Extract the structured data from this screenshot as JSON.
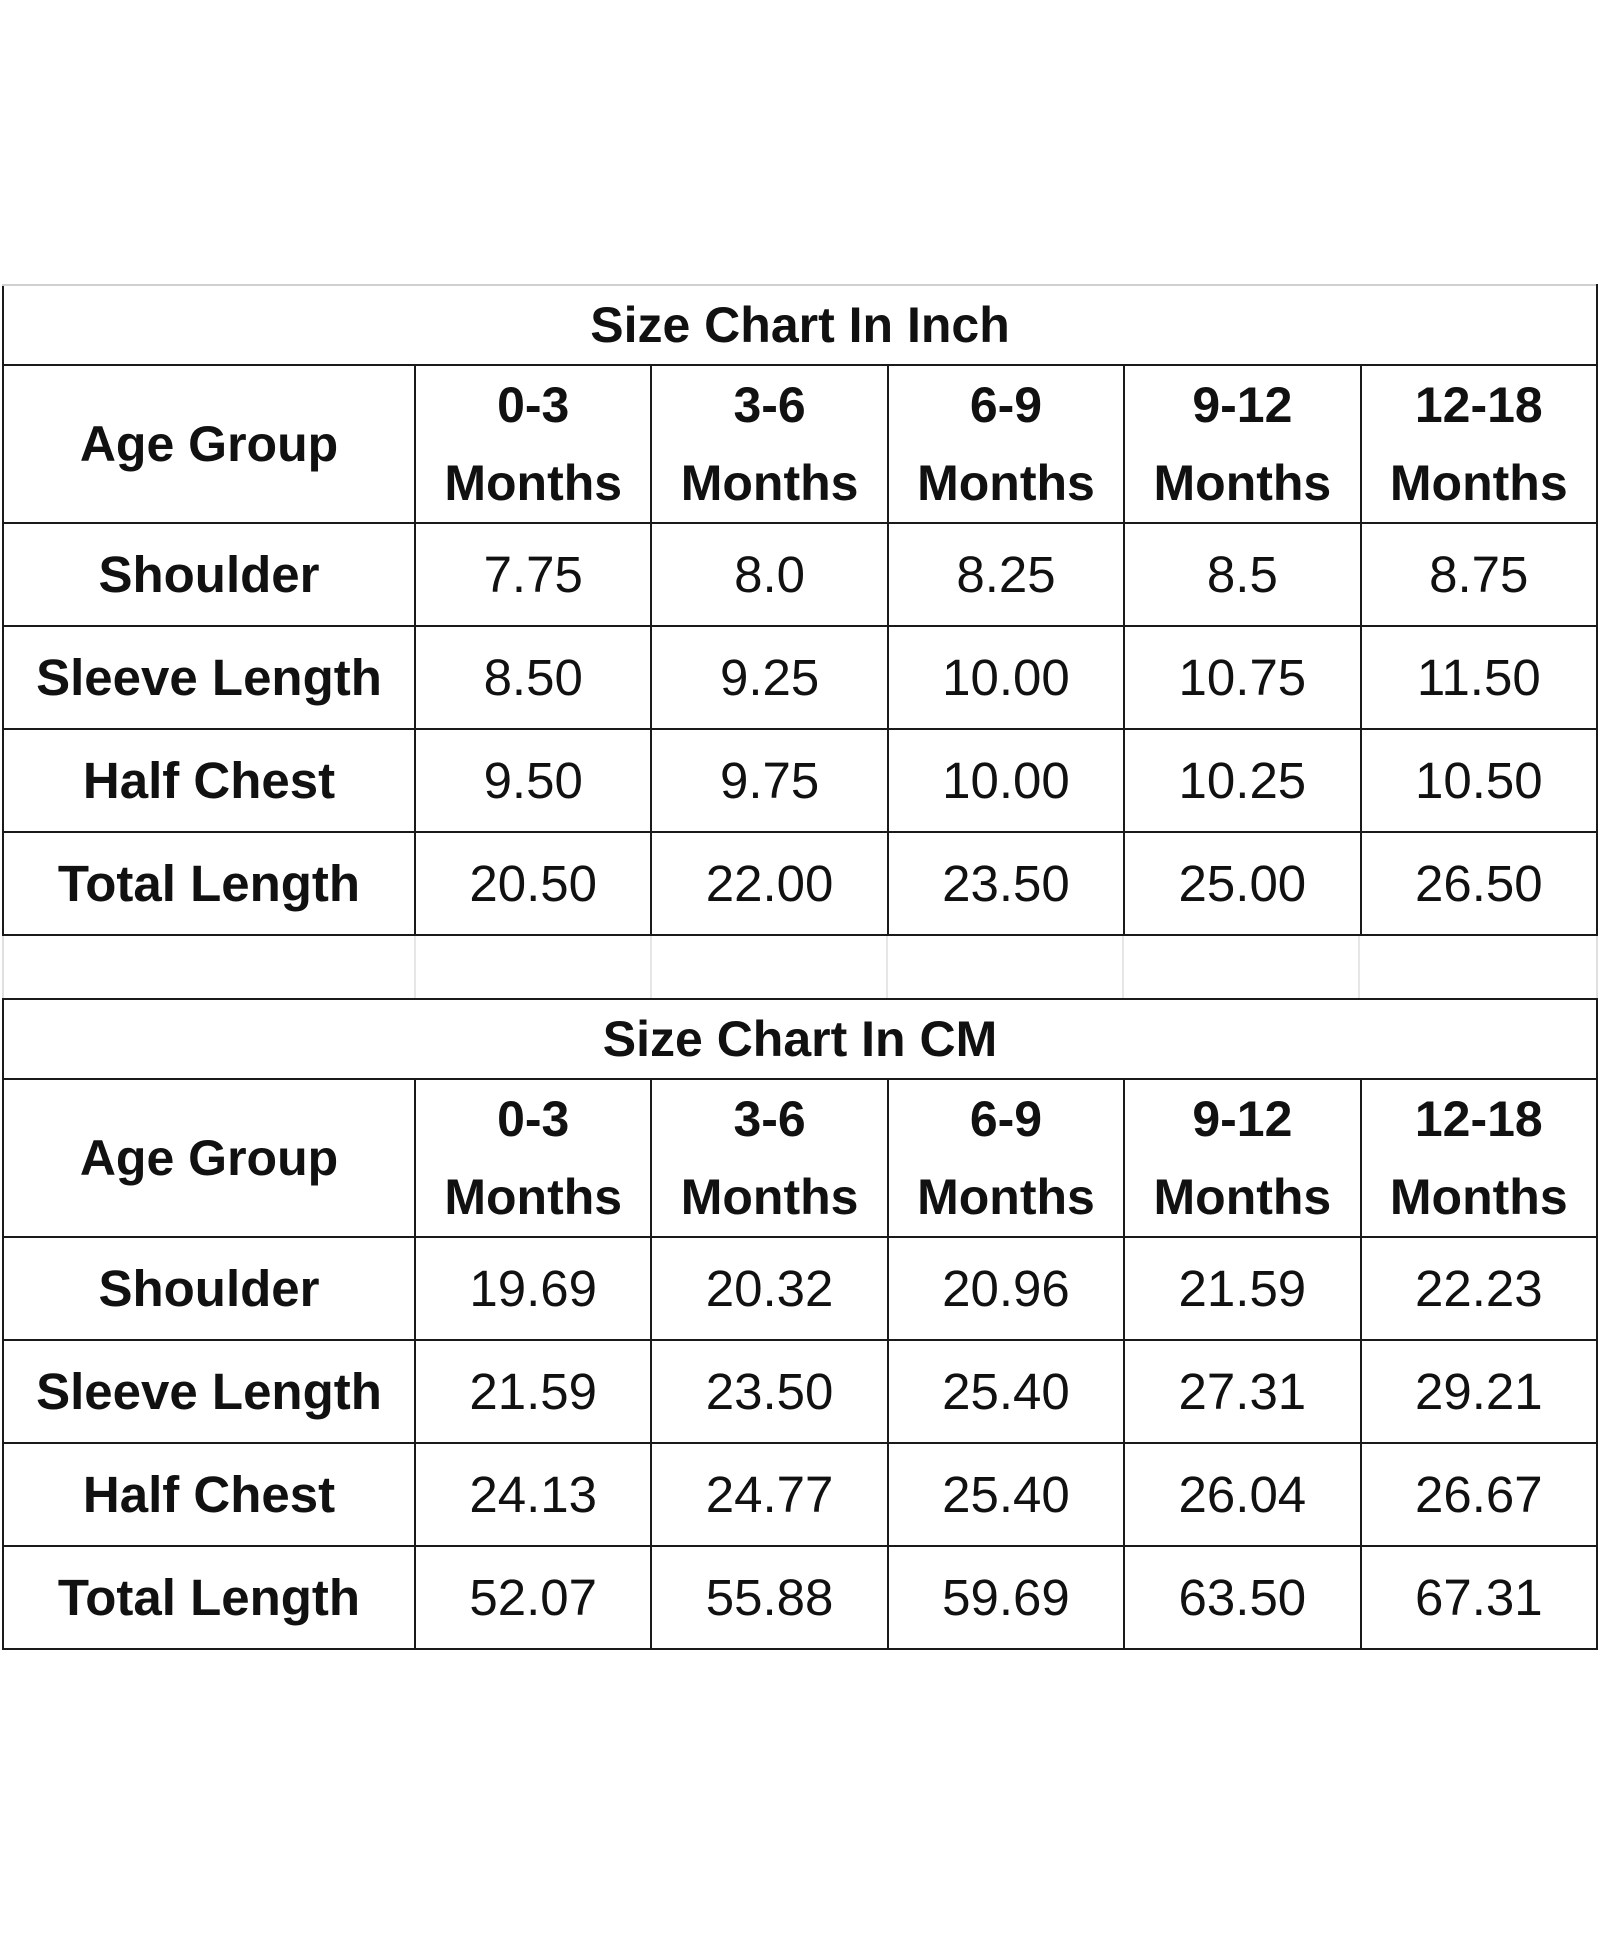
{
  "tables": [
    {
      "title": "Size Chart In Inch",
      "header": {
        "label": "Age Group",
        "columns": [
          {
            "range": "0-3",
            "unit": "Months"
          },
          {
            "range": "3-6",
            "unit": "Months"
          },
          {
            "range": "6-9",
            "unit": "Months"
          },
          {
            "range": "9-12",
            "unit": "Months"
          },
          {
            "range": "12-18",
            "unit": "Months"
          }
        ]
      },
      "rows": [
        {
          "label": "Shoulder",
          "values": [
            "7.75",
            "8.0",
            "8.25",
            "8.5",
            "8.75"
          ]
        },
        {
          "label": "Sleeve Length",
          "values": [
            "8.50",
            "9.25",
            "10.00",
            "10.75",
            "11.50"
          ]
        },
        {
          "label": "Half Chest",
          "values": [
            "9.50",
            "9.75",
            "10.00",
            "10.25",
            "10.50"
          ]
        },
        {
          "label": "Total Length",
          "values": [
            "20.50",
            "22.00",
            "23.50",
            "25.00",
            "26.50"
          ]
        }
      ]
    },
    {
      "title": "Size Chart In CM",
      "header": {
        "label": "Age Group",
        "columns": [
          {
            "range": "0-3",
            "unit": "Months"
          },
          {
            "range": "3-6",
            "unit": "Months"
          },
          {
            "range": "6-9",
            "unit": "Months"
          },
          {
            "range": "9-12",
            "unit": "Months"
          },
          {
            "range": "12-18",
            "unit": "Months"
          }
        ]
      },
      "rows": [
        {
          "label": "Shoulder",
          "values": [
            "19.69",
            "20.32",
            "20.96",
            "21.59",
            "22.23"
          ]
        },
        {
          "label": "Sleeve Length",
          "values": [
            "21.59",
            "23.50",
            "25.40",
            "27.31",
            "29.21"
          ]
        },
        {
          "label": "Half Chest",
          "values": [
            "24.13",
            "24.77",
            "25.40",
            "26.04",
            "26.67"
          ]
        },
        {
          "label": "Total Length",
          "values": [
            "52.07",
            "55.88",
            "59.69",
            "63.50",
            "67.31"
          ]
        }
      ]
    }
  ]
}
